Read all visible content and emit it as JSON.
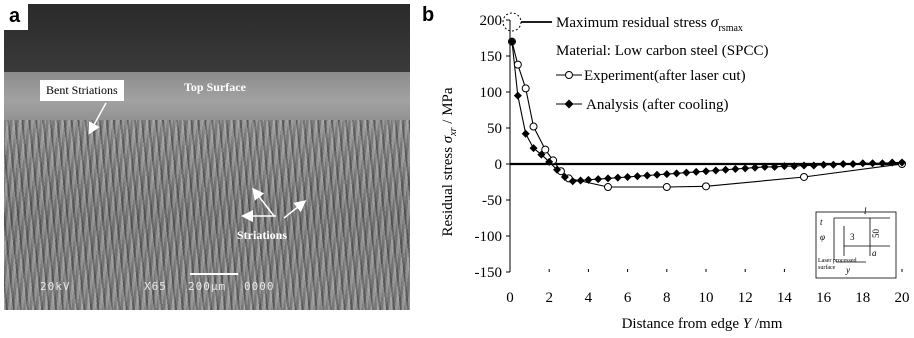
{
  "panel_a": {
    "letter": "a",
    "labels": {
      "top_surface": "Top Surface",
      "bent_striations": "Bent Striations",
      "striations": "Striations"
    },
    "sem_meta": {
      "voltage": "20kV",
      "magnification": "X65",
      "scale_bar": "200μm",
      "image_number": "0000"
    }
  },
  "panel_b": {
    "letter": "b",
    "annotation_max": "Maximum residual stress",
    "annotation_max_symbol": "σ",
    "annotation_max_sub": "rsmax",
    "material": "Material: Low carbon steel (SPCC)",
    "inset": {
      "label_l": "l",
      "label_t": "t",
      "label_phi": "φ",
      "label_3": "3",
      "label_50": "50",
      "label_a": "a",
      "label_y": "y",
      "caption_line1": "Laser processed",
      "caption_line2": "surface"
    }
  },
  "chart_data": {
    "type": "line",
    "xlabel_main": "Distance from edge",
    "xlabel_var": "Y",
    "xlabel_unit": "/mm",
    "ylabel_main": "Residual stress",
    "ylabel_var": "σ",
    "ylabel_sub": "xr",
    "ylabel_unit": "/ MPa",
    "xlim": [
      0,
      20
    ],
    "ylim": [
      -150,
      200
    ],
    "xticks": [
      0,
      2,
      4,
      6,
      8,
      10,
      12,
      14,
      16,
      18,
      20
    ],
    "yticks": [
      200,
      150,
      100,
      50,
      0,
      -50,
      -100,
      -150
    ],
    "series": [
      {
        "name": "Experiment(after laser cut)",
        "marker": "circle-open",
        "color": "#000000",
        "x": [
          0.1,
          0.4,
          0.8,
          1.2,
          1.8,
          2.2,
          2.6,
          3.0,
          5.0,
          8.0,
          10.0,
          15.0,
          20.0
        ],
        "y": [
          170,
          138,
          105,
          52,
          20,
          5,
          -10,
          -20,
          -32,
          -32,
          -31,
          -18,
          0
        ]
      },
      {
        "name": "Analysis (after cooling)",
        "marker": "diamond-filled",
        "color": "#000000",
        "x": [
          0.1,
          0.4,
          0.8,
          1.2,
          1.6,
          2.0,
          2.4,
          2.8,
          3.2,
          3.6,
          4.0,
          4.5,
          5.0,
          5.5,
          6.0,
          6.5,
          7.0,
          7.5,
          8.0,
          8.5,
          9.0,
          9.5,
          10.0,
          10.5,
          11.0,
          11.5,
          12.0,
          12.5,
          13.0,
          13.5,
          14.0,
          14.5,
          15.0,
          15.5,
          16.0,
          16.5,
          17.0,
          17.5,
          18.0,
          18.5,
          19.0,
          19.5,
          20.0
        ],
        "y": [
          170,
          95,
          42,
          22,
          13,
          3,
          -8,
          -18,
          -24,
          -23,
          -22,
          -21,
          -20,
          -19,
          -18,
          -17,
          -16,
          -15,
          -14,
          -13,
          -12,
          -11,
          -10,
          -9,
          -8,
          -7,
          -6,
          -5,
          -4,
          -4,
          -3,
          -3,
          -2,
          -2,
          -1,
          -1,
          0,
          0,
          1,
          1,
          1,
          2,
          2
        ]
      }
    ]
  }
}
